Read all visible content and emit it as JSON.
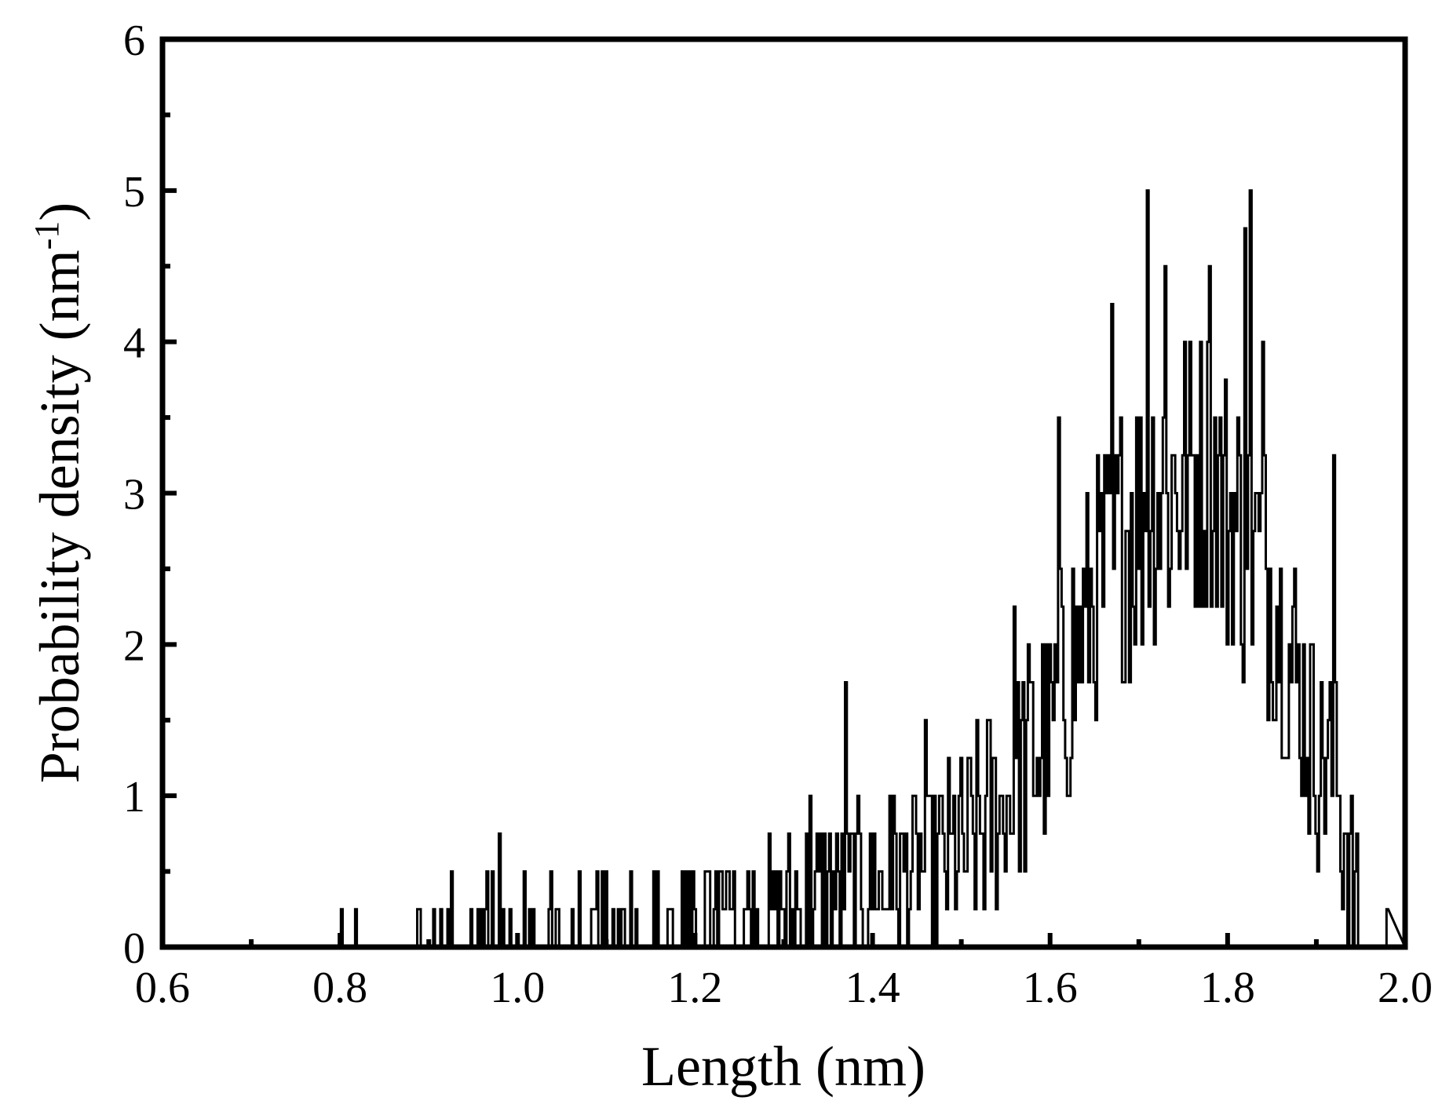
{
  "chart_data": {
    "type": "line",
    "title": "",
    "xlabel": "Length (nm)",
    "ylabel_main": "Probability density (nm",
    "ylabel_sup": "-1",
    "ylabel_close": ")",
    "xlim": [
      0.6,
      2.0
    ],
    "ylim": [
      0,
      6
    ],
    "x_ticks": [
      "0.6",
      "0.8",
      "1.0",
      "1.2",
      "1.4",
      "1.6",
      "1.8",
      "2.0"
    ],
    "y_ticks": [
      "0",
      "1",
      "2",
      "3",
      "4",
      "5",
      "6"
    ],
    "grid": false,
    "legend": "none",
    "line_color": "#000000",
    "bin_width_nm": 0.002,
    "quantum": 0.25,
    "series": [
      {
        "description": "noisy histogram (step = 0.25 nm^-1), shown via profile envelope",
        "x_start": 0.755,
        "x_end": 1.98,
        "profile": [
          {
            "x": 0.74,
            "y": 0.0
          },
          {
            "x": 0.8,
            "y": 0.03
          },
          {
            "x": 0.9,
            "y": 0.1
          },
          {
            "x": 1.0,
            "y": 0.14
          },
          {
            "x": 1.1,
            "y": 0.12
          },
          {
            "x": 1.2,
            "y": 0.16
          },
          {
            "x": 1.3,
            "y": 0.25
          },
          {
            "x": 1.4,
            "y": 0.42
          },
          {
            "x": 1.45,
            "y": 0.5
          },
          {
            "x": 1.5,
            "y": 0.65
          },
          {
            "x": 1.55,
            "y": 1.0
          },
          {
            "x": 1.6,
            "y": 1.45
          },
          {
            "x": 1.65,
            "y": 2.3
          },
          {
            "x": 1.7,
            "y": 2.9
          },
          {
            "x": 1.75,
            "y": 3.1
          },
          {
            "x": 1.78,
            "y": 3.2
          },
          {
            "x": 1.8,
            "y": 2.9
          },
          {
            "x": 1.85,
            "y": 2.4
          },
          {
            "x": 1.88,
            "y": 1.7
          },
          {
            "x": 1.9,
            "y": 1.3
          },
          {
            "x": 1.92,
            "y": 1.2
          },
          {
            "x": 1.94,
            "y": 0.4
          },
          {
            "x": 1.955,
            "y": 0.0
          }
        ],
        "spikes": [
          {
            "x": 0.98,
            "y": 0.75
          },
          {
            "x": 1.33,
            "y": 1.0
          },
          {
            "x": 1.37,
            "y": 1.75
          },
          {
            "x": 1.42,
            "y": 1.0
          },
          {
            "x": 1.46,
            "y": 1.5
          },
          {
            "x": 1.56,
            "y": 2.25
          },
          {
            "x": 1.61,
            "y": 3.5
          },
          {
            "x": 1.67,
            "y": 4.25
          },
          {
            "x": 1.71,
            "y": 5.0
          },
          {
            "x": 1.73,
            "y": 4.5
          },
          {
            "x": 1.78,
            "y": 4.5
          },
          {
            "x": 1.82,
            "y": 4.75
          },
          {
            "x": 1.825,
            "y": 5.0
          },
          {
            "x": 1.84,
            "y": 4.0
          },
          {
            "x": 1.92,
            "y": 3.25
          },
          {
            "x": 1.98,
            "y": 0.25
          }
        ]
      }
    ]
  }
}
